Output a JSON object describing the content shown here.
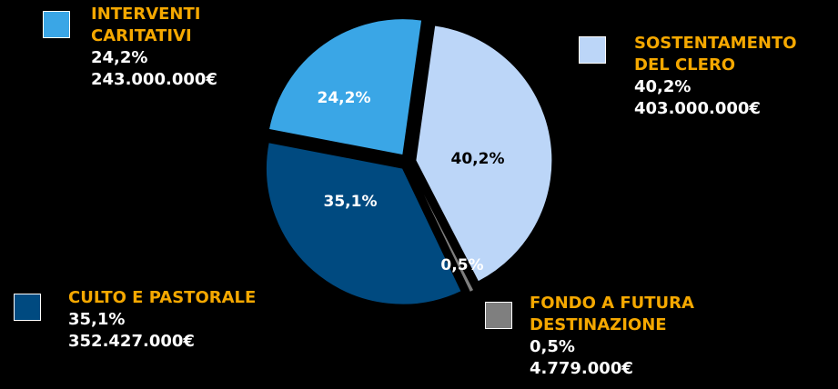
{
  "chart_data": {
    "type": "pie",
    "categories": [
      "SOSTENTAMENTO\nDEL CLERO",
      "FONDO A FUTURA\nDESTINAZIONE",
      "CULTO E PASTORALE",
      "INTERVENTI\nCARITATIVI"
    ],
    "values": [
      40.2,
      0.5,
      35.1,
      24.2
    ],
    "value_labels": [
      "40,2%",
      "0,5%",
      "35,1%",
      "24,2%"
    ],
    "amount_labels": [
      "403.000.000€",
      "4.779.000€",
      "352.427.000€",
      "243.000.000€"
    ],
    "colors": [
      "#bcd6f8",
      "#7f7f7f",
      "#004a80",
      "#3aa6e6"
    ]
  }
}
